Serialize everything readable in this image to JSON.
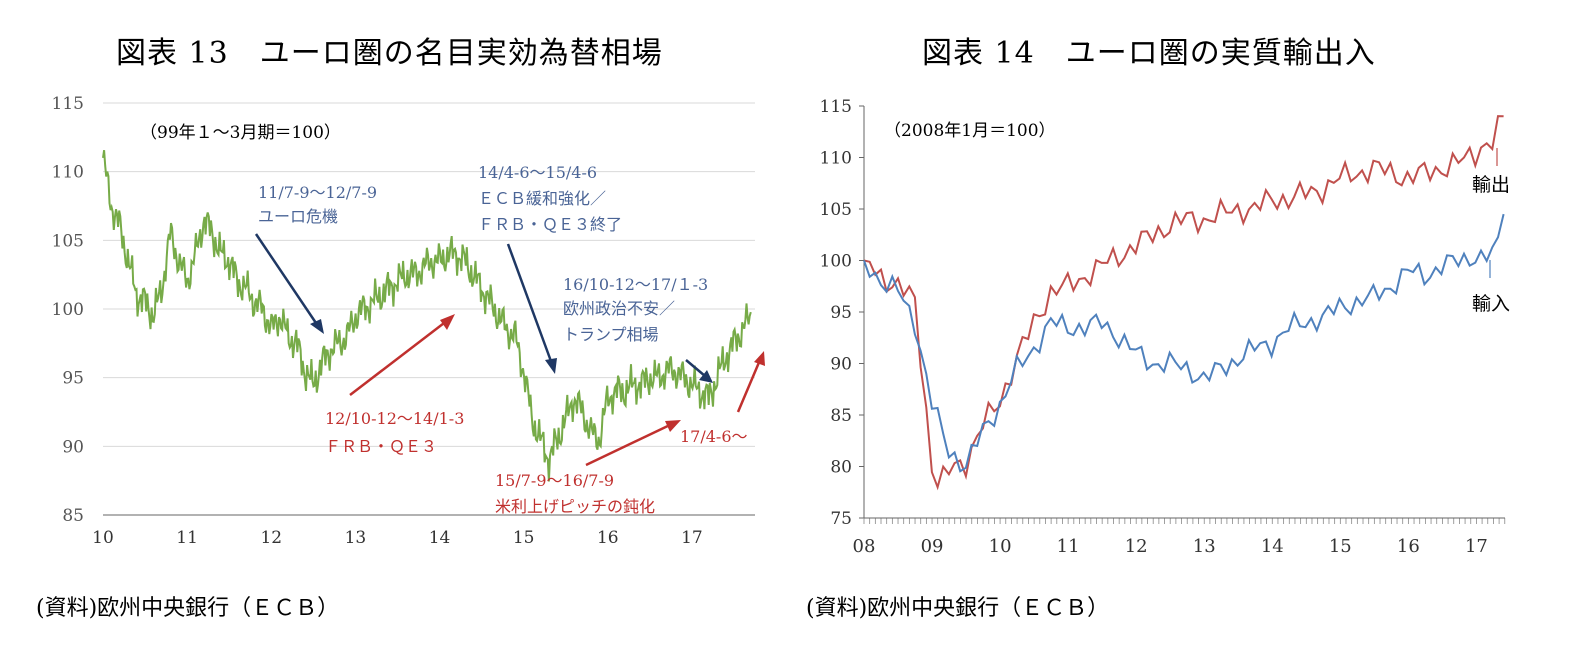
{
  "charts": [
    {
      "title": "図表 13　ユーロ圏の名目実効為替相場",
      "source": "(資料)欧州中央銀行（ＥＣＢ）",
      "note": "（99年１～3月期＝100）",
      "colors": {
        "line": "#77ab48",
        "axis": "#666666",
        "grid": "#d9d9d9",
        "navy": "#1f3864",
        "red": "#c0302e",
        "annot_blue": "#4a6496"
      },
      "annotations": {
        "a1_l1": "11/7-9～12/7-9",
        "a1_l2": "ユーロ危機",
        "a2_l1": "12/10-12～14/1-3",
        "a2_l2": "ＦＲＢ・ＱＥ３",
        "a3_l1": "14/4-6～15/4-6",
        "a3_l2": "ＥＣＢ緩和強化／",
        "a3_l3": "ＦＲＢ・ＱＥ３終了",
        "a4_l1": "15/7-9～16/7-9",
        "a4_l2": "米利上げピッチの鈍化",
        "a5_l1": "16/10-12～17/１-3",
        "a5_l2": "欧州政治不安／",
        "a5_l3": "トランプ相場",
        "a6_l1": "17/4-6～"
      }
    },
    {
      "title": "図表 14　ユーロ圏の実質輸出入",
      "source": "(資料)欧州中央銀行（ＥＣＢ）",
      "note": "（2008年1月＝100）",
      "colors": {
        "export": "#c0504d",
        "import": "#4f81bd",
        "axis": "#666666",
        "grid": "#d9d9d9"
      },
      "labels": {
        "export": "輸出",
        "import": "輸入"
      }
    }
  ],
  "chart_data": [
    {
      "type": "line",
      "title": "図表 13　ユーロ圏の名目実効為替相場",
      "x_tick_labels": [
        "10",
        "11",
        "12",
        "13",
        "14",
        "15",
        "16",
        "17"
      ],
      "y_ticks": [
        85,
        90,
        95,
        100,
        105,
        110,
        115
      ],
      "ylim": [
        85,
        115
      ],
      "xlim": [
        2010.0,
        2017.75
      ],
      "grid": "horizontal",
      "series": [
        {
          "x": [
            2010.0,
            2010.1,
            2010.2,
            2010.3,
            2010.4,
            2010.5,
            2010.6,
            2010.7,
            2010.8,
            2010.9,
            2011.0,
            2011.1,
            2011.2,
            2011.3,
            2011.4,
            2011.5,
            2011.6,
            2011.7,
            2011.8,
            2011.9,
            2012.0,
            2012.1,
            2012.2,
            2012.3,
            2012.4,
            2012.5,
            2012.6,
            2012.7,
            2012.8,
            2012.9,
            2013.0,
            2013.1,
            2013.2,
            2013.3,
            2013.4,
            2013.5,
            2013.6,
            2013.7,
            2013.8,
            2013.9,
            2014.0,
            2014.1,
            2014.2,
            2014.3,
            2014.4,
            2014.5,
            2014.6,
            2014.7,
            2014.8,
            2014.9,
            2015.0,
            2015.1,
            2015.2,
            2015.3,
            2015.4,
            2015.5,
            2015.6,
            2015.7,
            2015.8,
            2015.9,
            2016.0,
            2016.1,
            2016.2,
            2016.3,
            2016.4,
            2016.5,
            2016.6,
            2016.7,
            2016.8,
            2016.9,
            2017.0,
            2017.1,
            2017.2,
            2017.3,
            2017.4,
            2017.5,
            2017.6,
            2017.7
          ],
          "values": [
            111.0,
            107.5,
            106.0,
            103.5,
            101.0,
            100.5,
            99.5,
            101.5,
            105.5,
            103.5,
            102.0,
            104.0,
            106.5,
            105.5,
            104.0,
            103.5,
            102.0,
            101.5,
            100.5,
            100.0,
            98.5,
            99.5,
            98.0,
            97.5,
            95.5,
            94.5,
            96.0,
            97.0,
            97.5,
            98.0,
            99.5,
            100.0,
            100.5,
            101.0,
            101.5,
            102.0,
            102.5,
            102.5,
            103.0,
            103.5,
            103.5,
            104.0,
            104.0,
            103.5,
            102.5,
            101.5,
            100.5,
            99.5,
            98.5,
            98.0,
            95.5,
            92.0,
            90.5,
            89.0,
            90.5,
            92.0,
            93.5,
            92.5,
            91.0,
            90.5,
            93.5,
            94.0,
            94.0,
            94.5,
            94.5,
            95.0,
            95.0,
            95.5,
            95.5,
            95.0,
            94.5,
            94.0,
            93.5,
            95.0,
            96.5,
            97.5,
            98.5,
            99.5
          ]
        }
      ]
    },
    {
      "type": "line",
      "title": "図表 14　ユーロ圏の実質輸出入",
      "x_tick_labels": [
        "08",
        "09",
        "10",
        "11",
        "12",
        "13",
        "14",
        "15",
        "16",
        "17"
      ],
      "y_ticks": [
        75,
        80,
        85,
        90,
        95,
        100,
        105,
        110,
        115
      ],
      "ylim": [
        75,
        115
      ],
      "xlim": [
        2008.0,
        2017.42
      ],
      "grid": "none",
      "series": [
        {
          "name": "輸出",
          "x": [
            2008.0,
            2008.25,
            2008.5,
            2008.75,
            2009.0,
            2009.1,
            2009.2,
            2009.3,
            2009.5,
            2009.75,
            2010.0,
            2010.25,
            2010.5,
            2010.75,
            2011.0,
            2011.25,
            2011.5,
            2011.75,
            2012.0,
            2012.25,
            2012.5,
            2012.75,
            2013.0,
            2013.25,
            2013.5,
            2013.75,
            2014.0,
            2014.25,
            2014.5,
            2014.75,
            2015.0,
            2015.25,
            2015.5,
            2015.75,
            2016.0,
            2016.25,
            2016.5,
            2016.75,
            2017.0,
            2017.1,
            2017.2,
            2017.3,
            2017.4
          ],
          "values": [
            100.0,
            98.5,
            97.5,
            96.0,
            80.0,
            78.0,
            79.0,
            80.0,
            80.5,
            84.0,
            86.5,
            90.5,
            94.0,
            97.0,
            97.5,
            98.5,
            99.5,
            100.5,
            101.5,
            102.5,
            103.5,
            104.0,
            104.0,
            104.5,
            105.0,
            105.0,
            106.0,
            106.0,
            106.5,
            107.0,
            108.0,
            108.5,
            109.0,
            108.5,
            108.0,
            108.5,
            109.0,
            109.5,
            110.5,
            111.5,
            111.0,
            112.5,
            114.0
          ]
        },
        {
          "name": "輸入",
          "x": [
            2008.0,
            2008.25,
            2008.5,
            2008.75,
            2009.0,
            2009.25,
            2009.5,
            2009.75,
            2010.0,
            2010.25,
            2010.5,
            2010.75,
            2011.0,
            2011.25,
            2011.5,
            2011.75,
            2012.0,
            2012.25,
            2012.5,
            2012.75,
            2013.0,
            2013.25,
            2013.5,
            2013.75,
            2014.0,
            2014.25,
            2014.5,
            2014.75,
            2015.0,
            2015.25,
            2015.5,
            2015.75,
            2016.0,
            2016.25,
            2016.5,
            2016.75,
            2017.0,
            2017.1,
            2017.2,
            2017.3,
            2017.4
          ],
          "values": [
            100.0,
            98.0,
            97.0,
            94.0,
            86.0,
            81.5,
            80.0,
            83.5,
            86.0,
            89.5,
            91.5,
            94.0,
            93.5,
            93.5,
            94.0,
            92.5,
            91.0,
            90.0,
            90.0,
            89.5,
            88.5,
            89.5,
            90.5,
            91.5,
            92.0,
            93.5,
            94.0,
            94.5,
            95.5,
            96.0,
            96.5,
            97.5,
            99.0,
            98.5,
            99.5,
            100.0,
            100.5,
            100.0,
            100.5,
            101.0,
            104.5
          ]
        }
      ]
    }
  ]
}
